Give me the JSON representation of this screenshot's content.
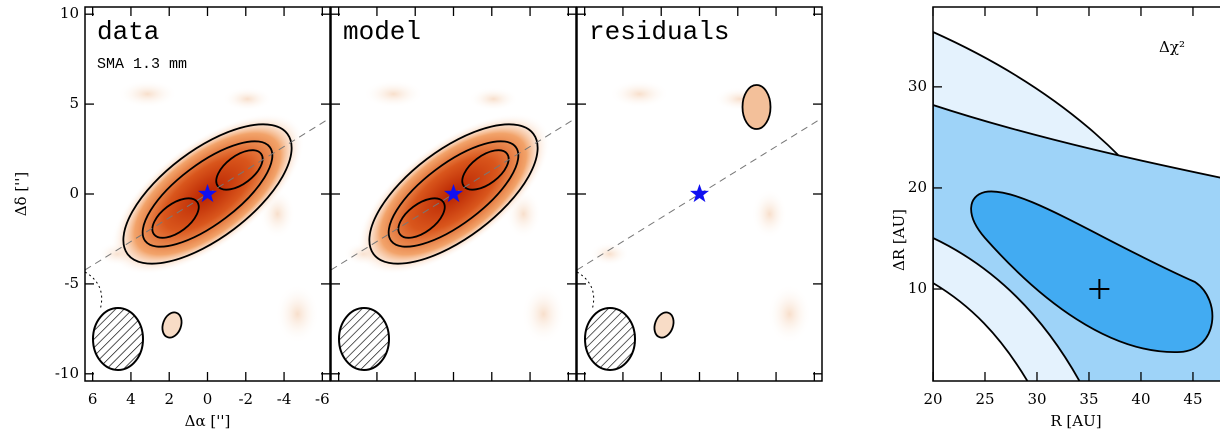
{
  "chart_data": [
    {
      "type": "image",
      "title": "data",
      "subtitle": "SMA 1.3 mm",
      "x_label": "Δα ['']",
      "y_label": "Δδ ['']",
      "xlim": [
        6.4,
        -6.4
      ],
      "ylim": [
        -10.4,
        10.4
      ],
      "xticks": [
        6,
        4,
        2,
        0,
        -2,
        -4,
        -6
      ],
      "yticks": [
        -10,
        -5,
        0,
        5,
        10
      ],
      "star": {
        "x": 0,
        "y": 0
      }
    },
    {
      "type": "image",
      "title": "model",
      "star": {
        "x": 0,
        "y": 0
      }
    },
    {
      "type": "image",
      "title": "residuals",
      "star": {
        "x": 0,
        "y": 0
      }
    },
    {
      "type": "contour",
      "title": "Δχ²",
      "x_label": "R [AU]",
      "y_label": "ΔR [AU]",
      "xlim": [
        20,
        47.6
      ],
      "ylim": [
        0.9,
        37.9
      ],
      "xticks": [
        20,
        25,
        30,
        35,
        40,
        45
      ],
      "yticks": [
        10,
        20,
        30
      ],
      "x": [
        36
      ],
      "y": [
        10
      ]
    }
  ]
}
